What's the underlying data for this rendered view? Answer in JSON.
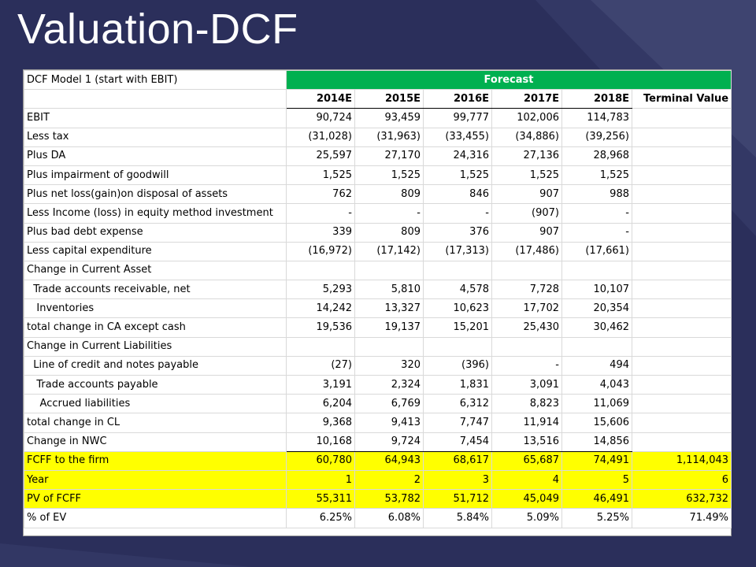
{
  "slide": {
    "title": "Valuation-DCF"
  },
  "sheet": {
    "corner_label": "DCF Model 1 (start with EBIT)",
    "forecast_label": "Forecast",
    "columns": [
      "2014E",
      "2015E",
      "2016E",
      "2017E",
      "2018E",
      "Terminal Value"
    ],
    "rows": [
      {
        "label": "EBIT",
        "values": [
          "90,724",
          "93,459",
          "99,777",
          "102,006",
          "114,783",
          ""
        ]
      },
      {
        "label": "Less tax",
        "values": [
          "(31,028)",
          "(31,963)",
          "(33,455)",
          "(34,886)",
          "(39,256)",
          ""
        ]
      },
      {
        "label": "Plus DA",
        "values": [
          "25,597",
          "27,170",
          "24,316",
          "27,136",
          "28,968",
          ""
        ]
      },
      {
        "label": "Plus impairment of goodwill",
        "values": [
          "1,525",
          "1,525",
          "1,525",
          "1,525",
          "1,525",
          ""
        ]
      },
      {
        "label": "Plus net loss(gain)on disposal of assets",
        "values": [
          "762",
          "809",
          "846",
          "907",
          "988",
          ""
        ]
      },
      {
        "label": "Less Income (loss) in equity method investment",
        "values": [
          "-",
          "-",
          "-",
          "(907)",
          "-",
          ""
        ]
      },
      {
        "label": "Plus bad debt expense",
        "values": [
          "339",
          "809",
          "376",
          "907",
          "-",
          ""
        ]
      },
      {
        "label": "Less capital expenditure",
        "values": [
          "(16,972)",
          "(17,142)",
          "(17,313)",
          "(17,486)",
          "(17,661)",
          ""
        ]
      },
      {
        "label": "Change in Current Asset",
        "values": [
          "",
          "",
          "",
          "",
          "",
          ""
        ]
      },
      {
        "label": "  Trade accounts receivable, net",
        "values": [
          "5,293",
          "5,810",
          "4,578",
          "7,728",
          "10,107",
          ""
        ]
      },
      {
        "label": "   Inventories",
        "values": [
          "14,242",
          "13,327",
          "10,623",
          "17,702",
          "20,354",
          ""
        ]
      },
      {
        "label": "total change in CA except cash",
        "values": [
          "19,536",
          "19,137",
          "15,201",
          "25,430",
          "30,462",
          ""
        ]
      },
      {
        "label": "Change in Current Liabilities",
        "values": [
          "",
          "",
          "",
          "",
          "",
          ""
        ]
      },
      {
        "label": "  Line of credit and notes payable",
        "values": [
          "(27)",
          "320",
          "(396)",
          "-",
          "494",
          ""
        ]
      },
      {
        "label": "   Trade accounts payable",
        "values": [
          "3,191",
          "2,324",
          "1,831",
          "3,091",
          "4,043",
          ""
        ]
      },
      {
        "label": "    Accrued liabilities",
        "values": [
          "6,204",
          "6,769",
          "6,312",
          "8,823",
          "11,069",
          ""
        ]
      },
      {
        "label": "total change in CL",
        "values": [
          "9,368",
          "9,413",
          "7,747",
          "11,914",
          "15,606",
          ""
        ]
      },
      {
        "label": "Change in NWC",
        "values": [
          "10,168",
          "9,724",
          "7,454",
          "13,516",
          "14,856",
          ""
        ]
      },
      {
        "label": "FCFF to the firm",
        "values": [
          "60,780",
          "64,943",
          "68,617",
          "65,687",
          "74,491",
          "1,114,043"
        ]
      },
      {
        "label": "Year",
        "values": [
          "1",
          "2",
          "3",
          "4",
          "5",
          "6"
        ]
      },
      {
        "label": "PV of FCFF",
        "values": [
          "55,311",
          "53,782",
          "51,712",
          "45,049",
          "46,491",
          "632,732"
        ]
      },
      {
        "label": "% of EV",
        "values": [
          "6.25%",
          "6.08%",
          "5.84%",
          "5.09%",
          "5.25%",
          "71.49%"
        ]
      }
    ]
  },
  "colors": {
    "background": "#2b2f5b",
    "forecast_fill": "#00b050",
    "highlight_fill": "#ffff00"
  }
}
